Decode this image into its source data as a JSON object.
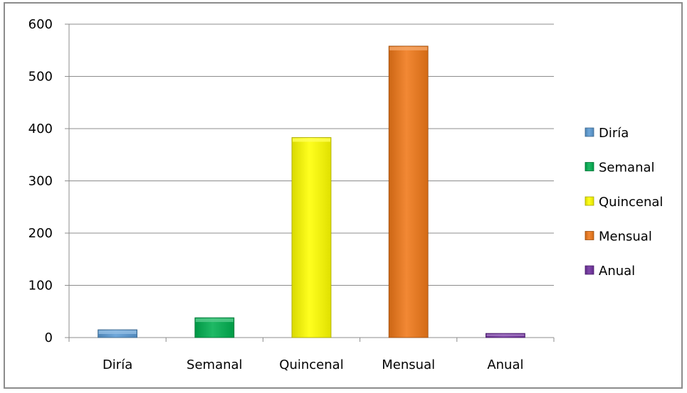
{
  "chart_data": {
    "type": "bar",
    "categories": [
      "Diría",
      "Semanal",
      "Quincenal",
      "Mensual",
      "Anual"
    ],
    "values": [
      15,
      38,
      383,
      558,
      8
    ],
    "colors": [
      "#5b9bd5",
      "#00b050",
      "#ffff00",
      "#f07818",
      "#7030a0"
    ],
    "ylim": [
      0,
      600
    ],
    "yticks": [
      0,
      100,
      200,
      300,
      400,
      500,
      600
    ],
    "grid": true,
    "legend": {
      "position": "right",
      "entries": [
        "Diría",
        "Semanal",
        "Quincenal",
        "Mensual",
        "Anual"
      ]
    }
  }
}
